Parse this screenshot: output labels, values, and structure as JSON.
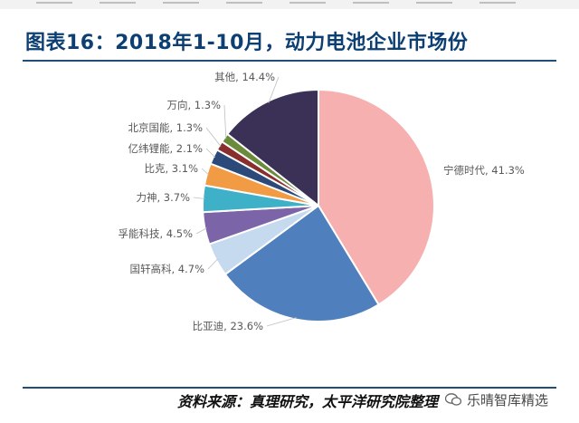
{
  "title": "图表16：2018年1-10月，动力电池企业市场份",
  "source": "资料来源：真理研究，太平洋研究院整理",
  "watermark": "乐晴智库精选",
  "watermark_icon": "wechat-icon",
  "colors": {
    "title": "#0d3f73",
    "rule": "#1f4e79"
  },
  "chart_data": {
    "type": "pie",
    "title": "2018年1-10月，动力电池企业市场份",
    "unit": "%",
    "slices": [
      {
        "name": "宁德时代",
        "value": 41.3,
        "label": "宁德时代, 41.3%",
        "color": "#f7b0b0"
      },
      {
        "name": "比亚迪",
        "value": 23.6,
        "label": "比亚迪, 23.6%",
        "color": "#4f7fbd"
      },
      {
        "name": "国轩高科",
        "value": 4.7,
        "label": "国轩高科, 4.7%",
        "color": "#c5d9ef"
      },
      {
        "name": "孚能科技",
        "value": 4.5,
        "label": "孚能科技, 4.5%",
        "color": "#7b64a8"
      },
      {
        "name": "力神",
        "value": 3.7,
        "label": "力神, 3.7%",
        "color": "#3eb1c8"
      },
      {
        "name": "比克",
        "value": 3.1,
        "label": "比克, 3.1%",
        "color": "#f29b45"
      },
      {
        "name": "亿纬锂能",
        "value": 2.1,
        "label": "亿纬锂能, 2.1%",
        "color": "#2b4a7a"
      },
      {
        "name": "北京国能",
        "value": 1.3,
        "label": "北京国能, 1.3%",
        "color": "#8a2d2d"
      },
      {
        "name": "万向",
        "value": 1.3,
        "label": "万向, 1.3%",
        "color": "#6b8a3a"
      },
      {
        "name": "其他",
        "value": 14.4,
        "label": "其他, 14.4%",
        "color": "#3b3056"
      }
    ]
  }
}
